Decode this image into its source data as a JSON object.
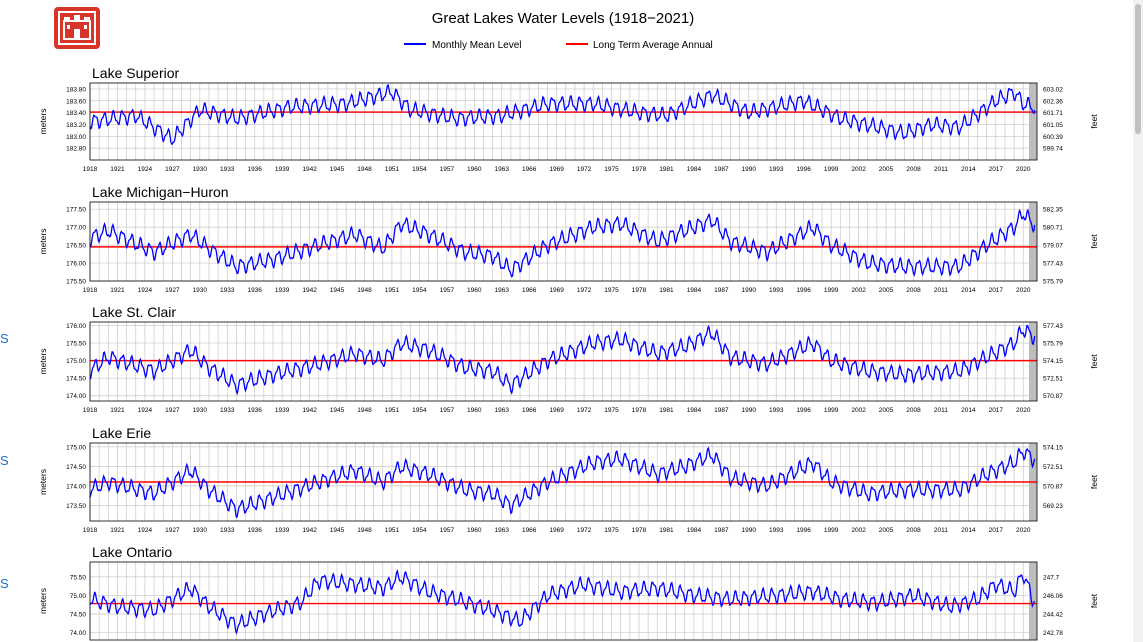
{
  "title": "Great Lakes Water Levels (1918−2021)",
  "legend": {
    "monthly_label": "Monthly Mean Level",
    "average_label": "Long Term Average Annual",
    "monthly_color": "#0000ff",
    "average_color": "#ff0000"
  },
  "logo_icon": "castle-icon",
  "edge_letters": [
    "S",
    "S",
    "S"
  ],
  "chart_data": [
    {
      "type": "line",
      "title": "Lake Superior",
      "ylabel_left": "meters",
      "ylabel_right": "feet",
      "xlim": [
        1918,
        2021.5
      ],
      "ylim": [
        182.6,
        183.9
      ],
      "yticks_left": [
        "183.80",
        "183.60",
        "183.40",
        "183.20",
        "183.00",
        "182.80"
      ],
      "yticks_left_values": [
        183.8,
        183.6,
        183.4,
        183.2,
        183.0,
        182.8
      ],
      "yticks_right": [
        "603.02",
        "602.36",
        "601.71",
        "601.05",
        "600.39",
        "599.74"
      ],
      "average": 183.41,
      "series": [
        {
          "name": "Monthly Mean Level",
          "x": [
            1918,
            1923,
            1927,
            1930,
            1934,
            1940,
            1946,
            1951,
            1953,
            1958,
            1963,
            1968,
            1973,
            1978,
            1981,
            1986,
            1990,
            1996,
            2000,
            2007,
            2010,
            2013,
            2017,
            2019,
            2020,
            2021
          ],
          "y": [
            183.25,
            183.35,
            182.95,
            183.45,
            183.3,
            183.5,
            183.55,
            183.75,
            183.45,
            183.3,
            183.35,
            183.55,
            183.55,
            183.4,
            183.35,
            183.7,
            183.4,
            183.6,
            183.3,
            183.05,
            183.2,
            183.15,
            183.6,
            183.75,
            183.55,
            183.5
          ]
        }
      ]
    },
    {
      "type": "line",
      "title": "Lake Michigan−Huron",
      "ylabel_left": "meters",
      "ylabel_right": "feet",
      "xlim": [
        1918,
        2021.5
      ],
      "ylim": [
        175.5,
        177.7
      ],
      "yticks_left": [
        "177.50",
        "177.00",
        "176.50",
        "176.00",
        "175.50"
      ],
      "yticks_left_values": [
        177.5,
        177.0,
        176.5,
        176.0,
        175.5
      ],
      "yticks_right": [
        "582.35",
        "580.71",
        "579.07",
        "577.43",
        "575.79"
      ],
      "average": 176.45,
      "series": [
        {
          "name": "Monthly Mean Level",
          "x": [
            1918,
            1920,
            1925,
            1929,
            1931,
            1934,
            1938,
            1943,
            1947,
            1950,
            1952,
            1955,
            1959,
            1962,
            1964,
            1968,
            1973,
            1976,
            1980,
            1983,
            1986,
            1988,
            1992,
            1997,
            1999,
            2003,
            2007,
            2013,
            2016,
            2019,
            2020,
            2021
          ],
          "y": [
            176.7,
            176.9,
            176.3,
            176.8,
            176.4,
            175.9,
            176.1,
            176.5,
            176.8,
            176.4,
            177.1,
            176.8,
            176.3,
            176.2,
            175.8,
            176.5,
            177.0,
            177.1,
            176.6,
            176.9,
            177.2,
            176.6,
            176.3,
            177.0,
            176.5,
            176.0,
            175.9,
            175.9,
            176.5,
            177.0,
            177.4,
            177.1
          ]
        }
      ]
    },
    {
      "type": "line",
      "title": "Lake St. Clair",
      "ylabel_left": "meters",
      "ylabel_right": "feet",
      "xlim": [
        1918,
        2021.5
      ],
      "ylim": [
        173.85,
        176.1
      ],
      "yticks_left": [
        "176.00",
        "175.50",
        "175.00",
        "174.50",
        "174.00"
      ],
      "yticks_left_values": [
        176.0,
        175.5,
        175.0,
        174.5,
        174.0
      ],
      "yticks_right": [
        "577.43",
        "575.79",
        "574.15",
        "572.51",
        "570.87"
      ],
      "average": 175.0,
      "series": [
        {
          "name": "Monthly Mean Level",
          "x": [
            1918,
            1920,
            1925,
            1929,
            1931,
            1934,
            1938,
            1943,
            1947,
            1950,
            1952,
            1955,
            1959,
            1962,
            1964,
            1968,
            1973,
            1976,
            1980,
            1983,
            1986,
            1988,
            1992,
            1997,
            1999,
            2003,
            2007,
            2013,
            2016,
            2019,
            2020,
            2021
          ],
          "y": [
            174.7,
            175.1,
            174.7,
            175.3,
            174.8,
            174.3,
            174.6,
            174.9,
            175.2,
            175.0,
            175.5,
            175.3,
            174.8,
            174.7,
            174.3,
            175.0,
            175.5,
            175.6,
            175.2,
            175.4,
            175.8,
            175.1,
            174.9,
            175.5,
            175.0,
            174.7,
            174.6,
            174.7,
            175.1,
            175.5,
            175.9,
            175.7
          ]
        }
      ]
    },
    {
      "type": "line",
      "title": "Lake Erie",
      "ylabel_left": "meters",
      "ylabel_right": "feet",
      "xlim": [
        1918,
        2021.5
      ],
      "ylim": [
        173.1,
        175.1
      ],
      "yticks_left": [
        "175.00",
        "174.50",
        "174.00",
        "173.50"
      ],
      "yticks_left_values": [
        175.0,
        174.5,
        174.0,
        173.5
      ],
      "yticks_right": [
        "574.15",
        "572.51",
        "570.87",
        "569.23"
      ],
      "average": 174.1,
      "series": [
        {
          "name": "Monthly Mean Level",
          "x": [
            1918,
            1920,
            1925,
            1929,
            1931,
            1934,
            1938,
            1943,
            1947,
            1950,
            1952,
            1955,
            1959,
            1962,
            1964,
            1968,
            1973,
            1976,
            1980,
            1983,
            1986,
            1988,
            1992,
            1997,
            1999,
            2003,
            2007,
            2013,
            2016,
            2019,
            2020,
            2021
          ],
          "y": [
            173.9,
            174.1,
            173.8,
            174.4,
            173.9,
            173.4,
            173.7,
            174.1,
            174.4,
            174.1,
            174.5,
            174.3,
            173.9,
            173.8,
            173.5,
            174.1,
            174.6,
            174.7,
            174.3,
            174.5,
            174.8,
            174.2,
            174.0,
            174.6,
            174.1,
            173.8,
            173.9,
            173.9,
            174.3,
            174.6,
            174.9,
            174.7
          ]
        }
      ]
    },
    {
      "type": "line",
      "title": "Lake Ontario",
      "ylabel_left": "meters",
      "ylabel_right": "feet",
      "xlim": [
        1918,
        2021.5
      ],
      "ylim": [
        73.8,
        75.9
      ],
      "yticks_left": [
        "75.50",
        "75.00",
        "74.50",
        "74.00"
      ],
      "yticks_left_values": [
        75.5,
        75.0,
        74.5,
        74.0
      ],
      "yticks_right": [
        "247.7",
        "246.06",
        "244.42",
        "242.78"
      ],
      "average": 74.78,
      "series": [
        {
          "name": "Monthly Mean Level",
          "x": [
            1918,
            1921,
            1925,
            1929,
            1931,
            1934,
            1937,
            1941,
            1943,
            1947,
            1950,
            1952,
            1955,
            1958,
            1962,
            1965,
            1968,
            1972,
            1976,
            1980,
            1984,
            1988,
            1993,
            1997,
            2000,
            2004,
            2008,
            2012,
            2015,
            2017,
            2019,
            2020,
            2021
          ],
          "y": [
            74.9,
            74.7,
            74.6,
            75.2,
            74.7,
            74.2,
            74.5,
            74.8,
            75.4,
            75.3,
            75.2,
            75.5,
            75.1,
            74.9,
            74.6,
            74.3,
            75.0,
            75.3,
            75.1,
            75.2,
            75.0,
            74.9,
            75.0,
            75.1,
            74.9,
            74.8,
            75.0,
            74.7,
            74.9,
            75.3,
            75.1,
            75.6,
            74.9
          ]
        }
      ]
    }
  ],
  "xticks": [
    "1918",
    "1921",
    "1924",
    "1927",
    "1930",
    "1933",
    "1936",
    "1939",
    "1942",
    "1945",
    "1948",
    "1951",
    "1954",
    "1957",
    "1960",
    "1963",
    "1966",
    "1969",
    "1972",
    "1975",
    "1978",
    "1981",
    "1984",
    "1987",
    "1990",
    "1993",
    "1996",
    "1999",
    "2002",
    "2005",
    "2008",
    "2011",
    "2014",
    "2017",
    "2020"
  ]
}
